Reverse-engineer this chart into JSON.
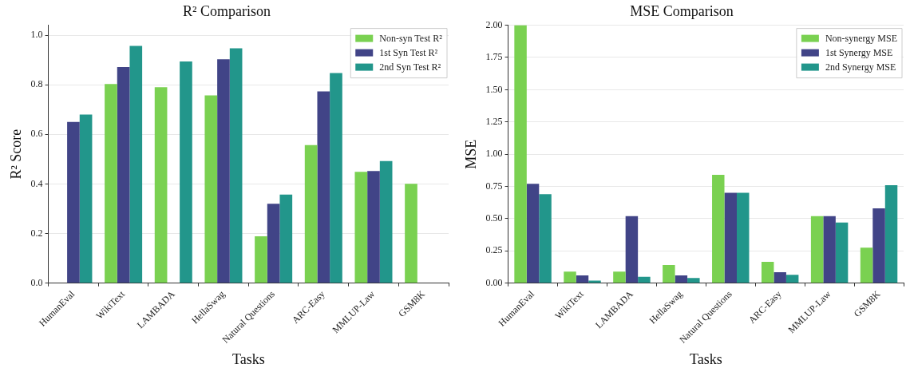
{
  "chart_data": [
    {
      "type": "bar",
      "title": "R² Comparison",
      "xlabel": "Tasks",
      "ylabel": "R² Score",
      "categories": [
        "HumanEval",
        "WikiText",
        "LAMBADA",
        "HellaSwag",
        "Natural Questions",
        "ARC-Easy",
        "MMLUP-Law",
        "GSM8K"
      ],
      "series": [
        {
          "name": "Non-syn Test R²",
          "color": "#7ad151",
          "values": [
            0,
            0.803,
            0.79,
            0.757,
            0.189,
            0.557,
            0.449,
            0.401
          ]
        },
        {
          "name": "1st Syn Test R²",
          "color": "#414487",
          "values": [
            0.65,
            0.871,
            0,
            0.903,
            0.32,
            0.773,
            0.452,
            0
          ]
        },
        {
          "name": "2nd Syn Test R²",
          "color": "#22968b",
          "values": [
            0.68,
            0.957,
            0.894,
            0.947,
            0.357,
            0.847,
            0.492,
            0
          ]
        }
      ],
      "ylim": [
        0,
        1.04
      ],
      "yticks": [
        {
          "value": 0,
          "label": "0.0"
        },
        0.2,
        0.4,
        0.6,
        0.8,
        {
          "value": 1,
          "label": "1.0"
        }
      ],
      "grid": "y",
      "legend": "top right"
    },
    {
      "type": "bar",
      "title": "MSE Comparison",
      "xlabel": "Tasks",
      "ylabel": "MSE",
      "categories": [
        "HumanEval",
        "WikiText",
        "LAMBADA",
        "HellaSwag",
        "Natural Questions",
        "ARC-Easy",
        "MMLUP-Law",
        "GSM8K"
      ],
      "series": [
        {
          "name": "Non-synergy MSE",
          "color": "#7ad151",
          "values": [
            2.0,
            0.09,
            0.09,
            0.14,
            0.84,
            0.165,
            0.52,
            0.275
          ]
        },
        {
          "name": "1st Synergy MSE",
          "color": "#414487",
          "values": [
            0.77,
            0.06,
            0.52,
            0.06,
            0.7,
            0.085,
            0.52,
            0.58
          ]
        },
        {
          "name": "2nd Synergy MSE",
          "color": "#22968b",
          "values": [
            0.69,
            0.02,
            0.05,
            0.04,
            0.7,
            0.065,
            0.47,
            0.76
          ]
        }
      ],
      "ylim": [
        0,
        2
      ],
      "yticks": [
        {
          "value": 0,
          "label": "0.00"
        },
        0.25,
        {
          "value": 0.5,
          "label": "0.50"
        },
        0.75,
        {
          "value": 1,
          "label": "1.00"
        },
        1.25,
        {
          "value": 1.5,
          "label": "1.50"
        },
        1.75,
        {
          "value": 2,
          "label": "2.00"
        }
      ],
      "grid": "y",
      "legend": "top right"
    }
  ]
}
